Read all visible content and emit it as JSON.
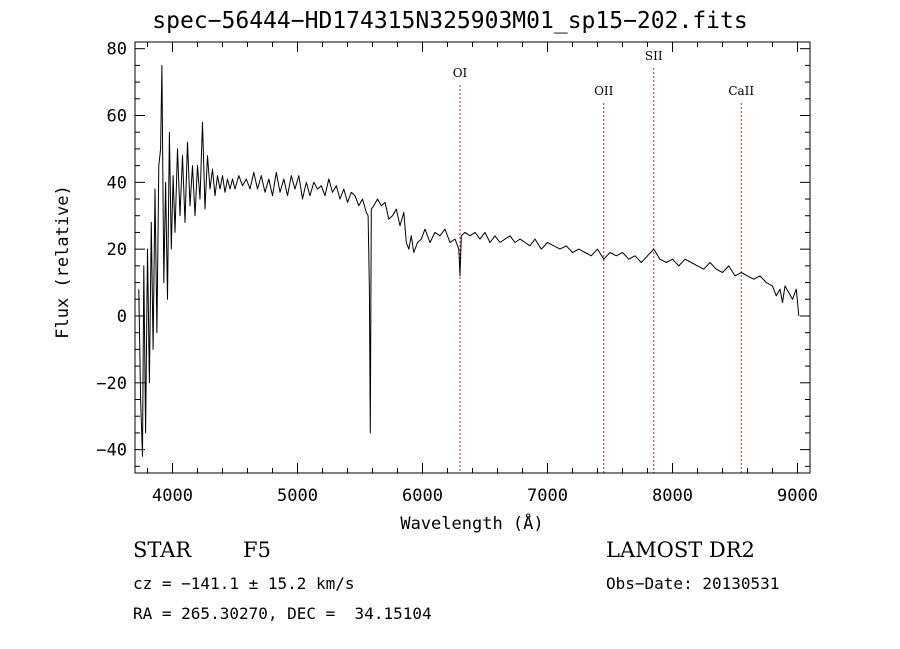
{
  "header": {
    "title": "spec−56444−HD174315N325903M01_sp15−202.fits"
  },
  "info": {
    "object_type": "STAR",
    "subclass": "F5",
    "survey": "LAMOST DR2",
    "cz": "cz = −141.1 ± 15.2 km/s",
    "obs_date": "Obs−Date: 20130531",
    "radec": "RA = 265.30270, DEC =  34.15104"
  },
  "colors": {
    "spectrum": "#000000",
    "line_markers": "#b22222",
    "axes": "#000000"
  },
  "chart_data": {
    "type": "line",
    "title": "spec−56444−HD174315N325903M01_sp15−202.fits",
    "xlabel": "Wavelength (Å)",
    "ylabel": "Flux (relative)",
    "xlim": [
      3700,
      9100
    ],
    "ylim": [
      -47,
      82
    ],
    "xticks": [
      4000,
      5000,
      6000,
      7000,
      8000,
      9000
    ],
    "xtick_labels": [
      "4000",
      "5000",
      "6000",
      "7000",
      "8000",
      "9000"
    ],
    "yticks": [
      -40,
      -20,
      0,
      20,
      40,
      60,
      80
    ],
    "ytick_labels": [
      "−40",
      "−20",
      "0",
      "20",
      "40",
      "60",
      "80"
    ],
    "grid": false,
    "legend": "none",
    "line_markers": [
      {
        "label": "OI",
        "x": 6300
      },
      {
        "label": "OII",
        "x": 7450
      },
      {
        "label": "SII",
        "x": 7850
      },
      {
        "label": "CaII",
        "x": 8550
      }
    ],
    "series": [
      {
        "x": [
          3730,
          3745,
          3760,
          3770,
          3785,
          3800,
          3815,
          3830,
          3845,
          3860,
          3875,
          3890,
          3905,
          3915,
          3930,
          3945,
          3960,
          3975,
          3990,
          4005,
          4020,
          4040,
          4060,
          4080,
          4100,
          4120,
          4140,
          4160,
          4180,
          4200,
          4220,
          4240,
          4260,
          4280,
          4300,
          4320,
          4340,
          4360,
          4380,
          4400,
          4420,
          4440,
          4460,
          4480,
          4500,
          4530,
          4560,
          4590,
          4620,
          4650,
          4680,
          4710,
          4740,
          4770,
          4800,
          4830,
          4860,
          4890,
          4920,
          4950,
          4980,
          5010,
          5040,
          5070,
          5100,
          5130,
          5160,
          5190,
          5220,
          5250,
          5280,
          5310,
          5340,
          5370,
          5400,
          5430,
          5460,
          5490,
          5520,
          5550,
          5565,
          5575,
          5582,
          5590,
          5610,
          5640,
          5670,
          5700,
          5730,
          5760,
          5790,
          5820,
          5850,
          5870,
          5890,
          5910,
          5930,
          5960,
          5990,
          6020,
          6060,
          6100,
          6140,
          6180,
          6220,
          6260,
          6290,
          6300,
          6310,
          6340,
          6380,
          6420,
          6460,
          6500,
          6540,
          6580,
          6620,
          6660,
          6700,
          6740,
          6780,
          6820,
          6860,
          6900,
          6950,
          7000,
          7050,
          7100,
          7150,
          7200,
          7250,
          7300,
          7350,
          7400,
          7450,
          7500,
          7550,
          7600,
          7650,
          7700,
          7750,
          7800,
          7850,
          7900,
          7950,
          8000,
          8050,
          8100,
          8150,
          8200,
          8250,
          8300,
          8350,
          8400,
          8450,
          8500,
          8550,
          8600,
          8650,
          8700,
          8750,
          8800,
          8830,
          8860,
          8880,
          8900,
          8930,
          8960,
          8990,
          9010
        ],
        "y": [
          8,
          -25,
          -42,
          15,
          -35,
          20,
          -20,
          28,
          -10,
          38,
          -5,
          45,
          50,
          75,
          10,
          40,
          5,
          55,
          20,
          42,
          25,
          50,
          30,
          48,
          28,
          52,
          33,
          45,
          30,
          45,
          35,
          58,
          32,
          48,
          38,
          44,
          36,
          42,
          38,
          42,
          37,
          41,
          38,
          41,
          38,
          42,
          39,
          41,
          38,
          43,
          38,
          42,
          37,
          41,
          36,
          43,
          37,
          41,
          36,
          42,
          38,
          42,
          35,
          40,
          36,
          40,
          38,
          39,
          36,
          41,
          37,
          39,
          35,
          38,
          34,
          37,
          36,
          33,
          35,
          31,
          30,
          8,
          -35,
          32,
          33,
          35,
          33,
          34,
          29,
          30,
          32,
          27,
          31,
          22,
          20,
          24,
          19,
          22,
          23,
          26,
          22,
          25,
          24,
          26,
          22,
          23,
          20,
          12,
          24,
          25,
          24,
          25,
          23,
          25,
          22,
          24,
          22,
          23,
          24,
          22,
          23,
          22,
          21,
          23,
          20,
          22,
          21,
          20,
          21,
          19,
          20,
          19,
          18,
          20,
          17,
          19,
          18,
          19,
          17,
          18,
          16,
          18,
          20,
          17,
          16,
          17,
          15,
          17,
          16,
          15,
          14,
          16,
          14,
          13,
          15,
          12,
          13,
          12,
          11,
          12,
          10,
          9,
          6,
          8,
          4,
          9,
          7,
          5,
          8,
          0
        ]
      }
    ]
  }
}
